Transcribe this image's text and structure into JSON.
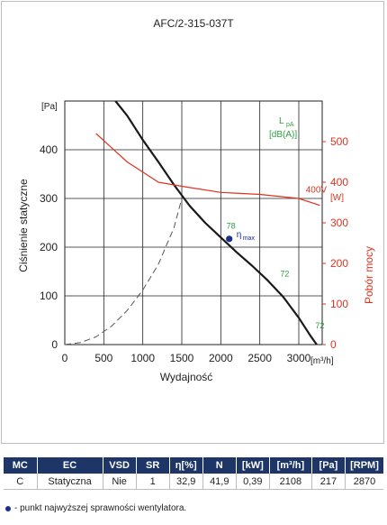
{
  "chart_data": {
    "type": "line",
    "title": "AFC/2-315-037T",
    "xlabel": "Wydajność",
    "x_unit": "[m³/h]",
    "ylabel": "Ciśnienie statyczne",
    "y_unit": "[Pa]",
    "y2label": "Pobór mocy",
    "y2_unit": "[W]",
    "xlim": [
      0,
      3300
    ],
    "ylim": [
      0,
      500
    ],
    "y2lim": [
      0,
      600
    ],
    "x_ticks": [
      0,
      500,
      1000,
      1500,
      2000,
      2500,
      3000
    ],
    "y_ticks": [
      0,
      100,
      200,
      300,
      400
    ],
    "y2_ticks": [
      0,
      100,
      200,
      300,
      400,
      500
    ],
    "grid": true,
    "lpa_label": [
      "L",
      "pA",
      "[dB(A)]"
    ],
    "series": [
      {
        "axis": "left",
        "color": "#1a1a1a",
        "style": "solid",
        "points": [
          [
            650,
            500
          ],
          [
            800,
            470
          ],
          [
            1000,
            420
          ],
          [
            1200,
            375
          ],
          [
            1400,
            328
          ],
          [
            1600,
            285
          ],
          [
            1800,
            250
          ],
          [
            2000,
            220
          ],
          [
            2200,
            190
          ],
          [
            2400,
            162
          ],
          [
            2600,
            132
          ],
          [
            2800,
            98
          ],
          [
            3000,
            55
          ],
          [
            3150,
            18
          ],
          [
            3230,
            0
          ]
        ]
      },
      {
        "axis": "left",
        "color": "#555555",
        "style": "dashed",
        "points": [
          [
            0,
            0
          ],
          [
            200,
            4
          ],
          [
            400,
            16
          ],
          [
            600,
            38
          ],
          [
            800,
            70
          ],
          [
            1000,
            112
          ],
          [
            1200,
            165
          ],
          [
            1400,
            240
          ],
          [
            1500,
            300
          ]
        ]
      },
      {
        "name": "400V",
        "axis": "right",
        "color": "#e0321f",
        "style": "solid",
        "points": [
          [
            400,
            520
          ],
          [
            600,
            485
          ],
          [
            800,
            450
          ],
          [
            1000,
            425
          ],
          [
            1200,
            400
          ],
          [
            1500,
            390
          ],
          [
            2000,
            375
          ],
          [
            2500,
            370
          ],
          [
            3000,
            360
          ],
          [
            3270,
            343
          ]
        ]
      }
    ],
    "eta_max": {
      "x": 2108,
      "y": 217,
      "label_main": "η",
      "label_sub": "max",
      "color": "#1d2f8a"
    },
    "annotations": [
      {
        "text": "78",
        "x": 2130,
        "y": 238,
        "color": "#2e9e3e"
      },
      {
        "text": "72",
        "x": 2820,
        "y": 140,
        "color": "#2e9e3e"
      },
      {
        "text": "72",
        "x": 3270,
        "y": 33,
        "color": "#2e9e3e"
      }
    ]
  },
  "table": {
    "headers": [
      "MC",
      "EC",
      "VSD",
      "SR",
      "η[%]",
      "N",
      "[kW]",
      "[m³/h]",
      "[Pa]",
      "[RPM]"
    ],
    "row": [
      "C",
      "Statyczna",
      "Nie",
      "1",
      "32,9",
      "41,9",
      "0,39",
      "2108",
      "217",
      "2870"
    ]
  },
  "footnote": "- punkt najwyższej sprawności wentylatora."
}
